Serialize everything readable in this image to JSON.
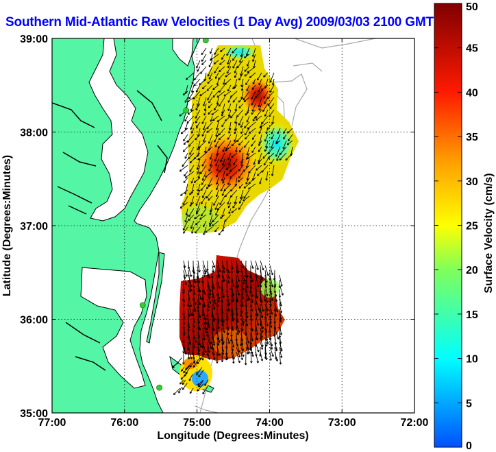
{
  "title": "Southern Mid-Atlantic Raw Velocities (1 Day Avg) 2009/03/03 2100 GMT",
  "axes": {
    "xlabel": "Longitude (Degrees:Minutes)",
    "ylabel": "Latitude (Degrees:Minutes)",
    "x_ticks": [
      "77:00",
      "76:00",
      "75:00",
      "74:00",
      "73:00",
      "72:00"
    ],
    "y_ticks": [
      "39:00",
      "38:00",
      "37:00",
      "36:00",
      "35:00"
    ],
    "xlim": [
      -77,
      -72
    ],
    "ylim": [
      35,
      39
    ]
  },
  "colorbar": {
    "label": "Surface Velocity (cm/s)",
    "ticks": [
      "50",
      "45",
      "40",
      "35",
      "30",
      "25",
      "20",
      "15",
      "10",
      "5",
      "0"
    ],
    "range": [
      0,
      50
    ]
  },
  "colors": {
    "land": "#55f5a6",
    "title": "#0000ff",
    "station": "#2ed12e",
    "isobath": "#a8a8a8"
  }
}
